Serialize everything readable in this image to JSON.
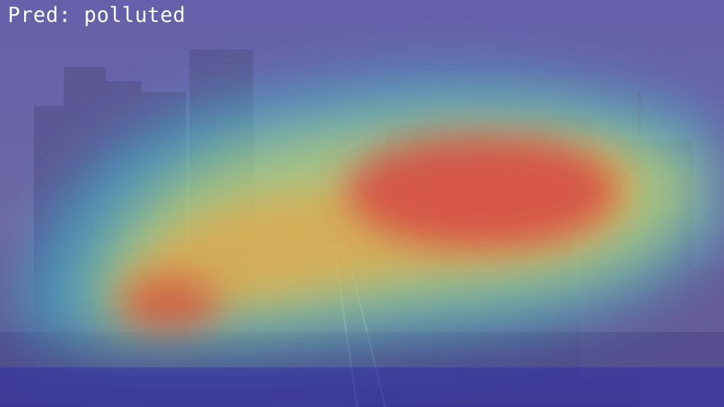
{
  "prediction": {
    "text": "Pred: polluted",
    "label_color": "#ffffff"
  },
  "image": {
    "subject": "hazy-city-skyline",
    "overlay": "jet-heatmap",
    "overlay_colors": [
      "#2020a0",
      "#3050e0",
      "#40c8d8",
      "#e8e060",
      "#f0a040",
      "#d83040"
    ]
  }
}
